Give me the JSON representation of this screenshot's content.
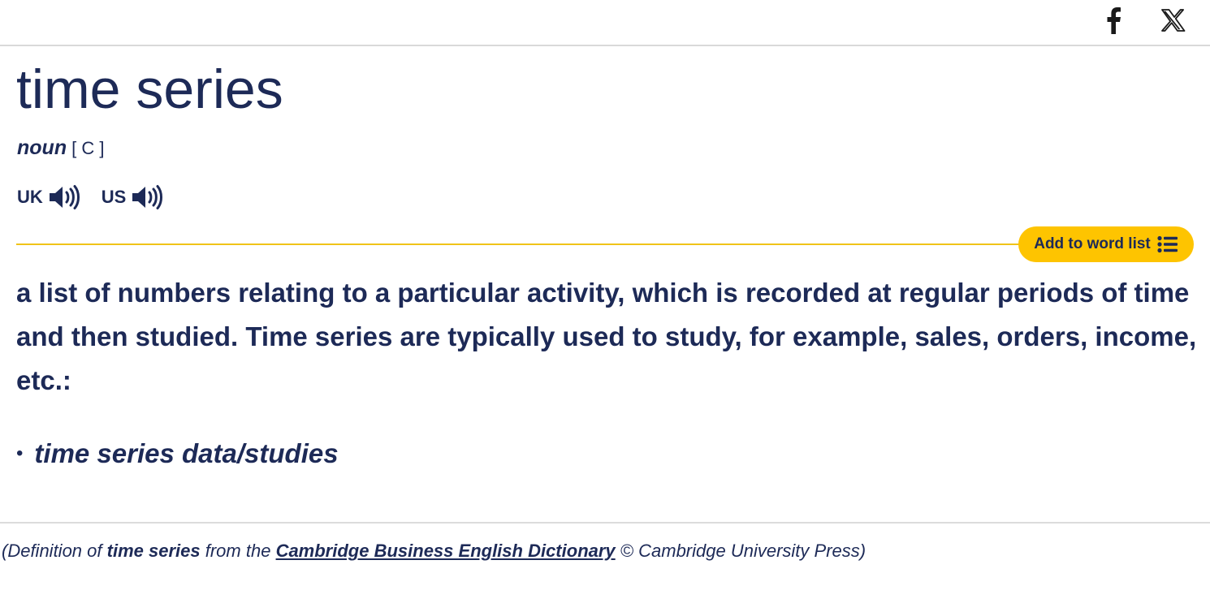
{
  "share": {
    "facebook_icon": "facebook-icon",
    "x_icon": "x-twitter-icon"
  },
  "entry": {
    "headword": "time series",
    "pos": "noun",
    "grammar": "[ C ]",
    "pron_uk": "UK",
    "pron_us": "US",
    "add_to_word_list": "Add to word list",
    "definition": "a list of numbers relating to a particular activity, which is recorded at regular periods of time and then studied. Time series are typically used to study, for example, sales, orders, income, etc.:",
    "example_bullet": "•",
    "example": "time series data/studies"
  },
  "source": {
    "prefix": "(Definition of",
    "term": "time series",
    "middle": "from the",
    "dictionary": "Cambridge Business English Dictionary",
    "suffix": "© Cambridge University Press)"
  },
  "colors": {
    "text": "#1d2a57",
    "accent": "#fec400",
    "divider": "#f0c419"
  }
}
